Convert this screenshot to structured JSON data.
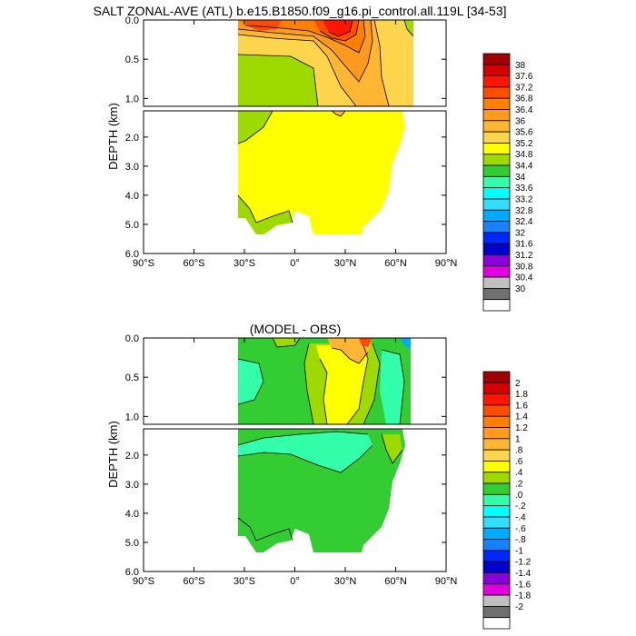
{
  "page_title": "SALT ZONAL-AVE (ATL) b.e15.B1850.f09_g16.pi_control.all.119L [34-53]",
  "chart_data": [
    {
      "type": "heatmap",
      "title": "SALT ZONAL-AVE (ATL) b.e15.B1850.f09_g16.pi_control.all.119L [34-53]",
      "ylabel": "DEPTH (km)",
      "xlabel": "",
      "x_ticks": [
        "90°S",
        "60°S",
        "30°S",
        "0°",
        "30°N",
        "60°N",
        "90°N"
      ],
      "y_ticks_upper": [
        "0.0",
        "0.5",
        "1.0"
      ],
      "y_ticks_lower": [
        "2.0",
        "3.0",
        "4.0",
        "5.0",
        "6.0"
      ],
      "y_range_upper_km": [
        0,
        1.1
      ],
      "y_range_lower_km": [
        1.1,
        6.0
      ],
      "x_range_deg": [
        -90,
        90
      ],
      "colorbar_levels": [
        "38",
        "37.6",
        "37.2",
        "36.8",
        "36.4",
        "36",
        "35.6",
        "35.2",
        "34.8",
        "34.4",
        "34",
        "33.6",
        "33.2",
        "32.8",
        "32.4",
        "32",
        "31.6",
        "31.2",
        "30.8",
        "30.4",
        "30"
      ],
      "colorbar_colors": [
        "#a00000",
        "#d40000",
        "#ff1500",
        "#ff4d00",
        "#ff8000",
        "#ff9a1f",
        "#ffb733",
        "#ffd54d",
        "#ffff00",
        "#9ed900",
        "#33cc33",
        "#33ffaa",
        "#00ffff",
        "#33ddff",
        "#00aaff",
        "#1a80ff",
        "#0026ff",
        "#0000cc",
        "#8a00d9",
        "#e000e0",
        "#c0c0c0",
        "#707070",
        "#ffffff"
      ],
      "regions": [
        {
          "name": "deep-yellow",
          "value_range": [
            34.8,
            35.2
          ],
          "color": "#ffff00"
        },
        {
          "name": "southern-green",
          "value_range": [
            34.4,
            34.8
          ],
          "color": "#9ed900"
        },
        {
          "name": "thermocline-orange",
          "value_range": [
            35.2,
            36.8
          ],
          "color": "#ffb733"
        },
        {
          "name": "subtropical-max",
          "value_range": [
            36.8,
            37.6
          ],
          "color": "#ff1500"
        }
      ]
    },
    {
      "type": "heatmap",
      "title": "(MODEL - OBS)",
      "ylabel": "DEPTH (km)",
      "xlabel": "",
      "x_ticks": [
        "90°S",
        "60°S",
        "30°S",
        "0°",
        "30°N",
        "60°N",
        "90°N"
      ],
      "y_ticks_upper": [
        "0.0",
        "0.5",
        "1.0"
      ],
      "y_ticks_lower": [
        "2.0",
        "3.0",
        "4.0",
        "5.0",
        "6.0"
      ],
      "y_range_upper_km": [
        0,
        1.1
      ],
      "y_range_lower_km": [
        1.1,
        6.0
      ],
      "x_range_deg": [
        -90,
        90
      ],
      "colorbar_levels": [
        "2",
        "1.8",
        "1.6",
        "1.4",
        "1.2",
        "1",
        ".8",
        ".6",
        ".4",
        ".2",
        ".0",
        "-.2",
        "-.4",
        "-.6",
        "-.8",
        "-1",
        "-1.2",
        "-1.4",
        "-1.6",
        "-1.8",
        "-2"
      ],
      "colorbar_colors": [
        "#a00000",
        "#d40000",
        "#ff1500",
        "#ff4d00",
        "#ff8000",
        "#ff9a1f",
        "#ffb733",
        "#ffd54d",
        "#ffff00",
        "#9ed900",
        "#33cc33",
        "#33ffaa",
        "#00ffff",
        "#33ddff",
        "#00aaff",
        "#1a80ff",
        "#0026ff",
        "#0000cc",
        "#8a00d9",
        "#e000e0",
        "#c0c0c0",
        "#707070",
        "#ffffff"
      ],
      "regions": [
        {
          "name": "background-green",
          "value_range": [
            0.0,
            0.2
          ],
          "color": "#33cc33"
        },
        {
          "name": "negative-cyan",
          "value_range": [
            -0.2,
            0.0
          ],
          "color": "#33ffaa"
        },
        {
          "name": "positive-yellow",
          "value_range": [
            0.4,
            0.8
          ],
          "color": "#ffff00"
        },
        {
          "name": "surface-orange",
          "value_range": [
            0.8,
            1.6
          ],
          "color": "#ffb733"
        }
      ]
    }
  ]
}
